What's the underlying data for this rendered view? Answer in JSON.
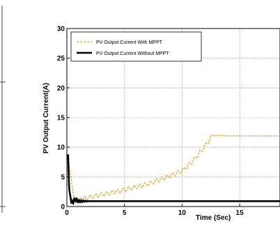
{
  "chart_data": {
    "type": "line",
    "xlabel": "Time (Sec)",
    "ylabel": "PV Output Current(A)",
    "xlim": [
      0,
      18.5
    ],
    "ylim": [
      0,
      30
    ],
    "x_ticks": [
      0,
      5,
      10,
      15
    ],
    "y_ticks": [
      0,
      5,
      10,
      15,
      20,
      25,
      30
    ],
    "grid": true,
    "legend_position": "top-left",
    "series": [
      {
        "name": "PV Output Current With MPPT",
        "color": "#e0a020",
        "style": "dashed-oscillating",
        "x": [
          0,
          0.1,
          0.3,
          0.6,
          1,
          2,
          3,
          4,
          5,
          6,
          7,
          8,
          9,
          10,
          11,
          12,
          12.6,
          13,
          14,
          15,
          16,
          17,
          18.5
        ],
        "y": [
          0,
          8.3,
          5.5,
          1.6,
          1.3,
          1.6,
          2.0,
          2.4,
          2.8,
          3.3,
          3.8,
          4.5,
          5.2,
          6.0,
          7.8,
          10.2,
          11.9,
          12.0,
          11.9,
          11.9,
          11.9,
          11.9,
          11.9
        ]
      },
      {
        "name": "PV Output Current Without MPPT",
        "color": "#000000",
        "style": "solid-thick",
        "x": [
          0,
          0.1,
          0.2,
          0.4,
          0.7,
          1,
          2,
          4,
          6,
          8,
          10,
          12,
          14,
          16,
          18.5
        ],
        "y": [
          0,
          8.8,
          3.0,
          0.5,
          1.2,
          0.9,
          0.9,
          0.9,
          0.9,
          0.9,
          0.9,
          0.9,
          0.9,
          0.9,
          0.9
        ]
      }
    ]
  }
}
